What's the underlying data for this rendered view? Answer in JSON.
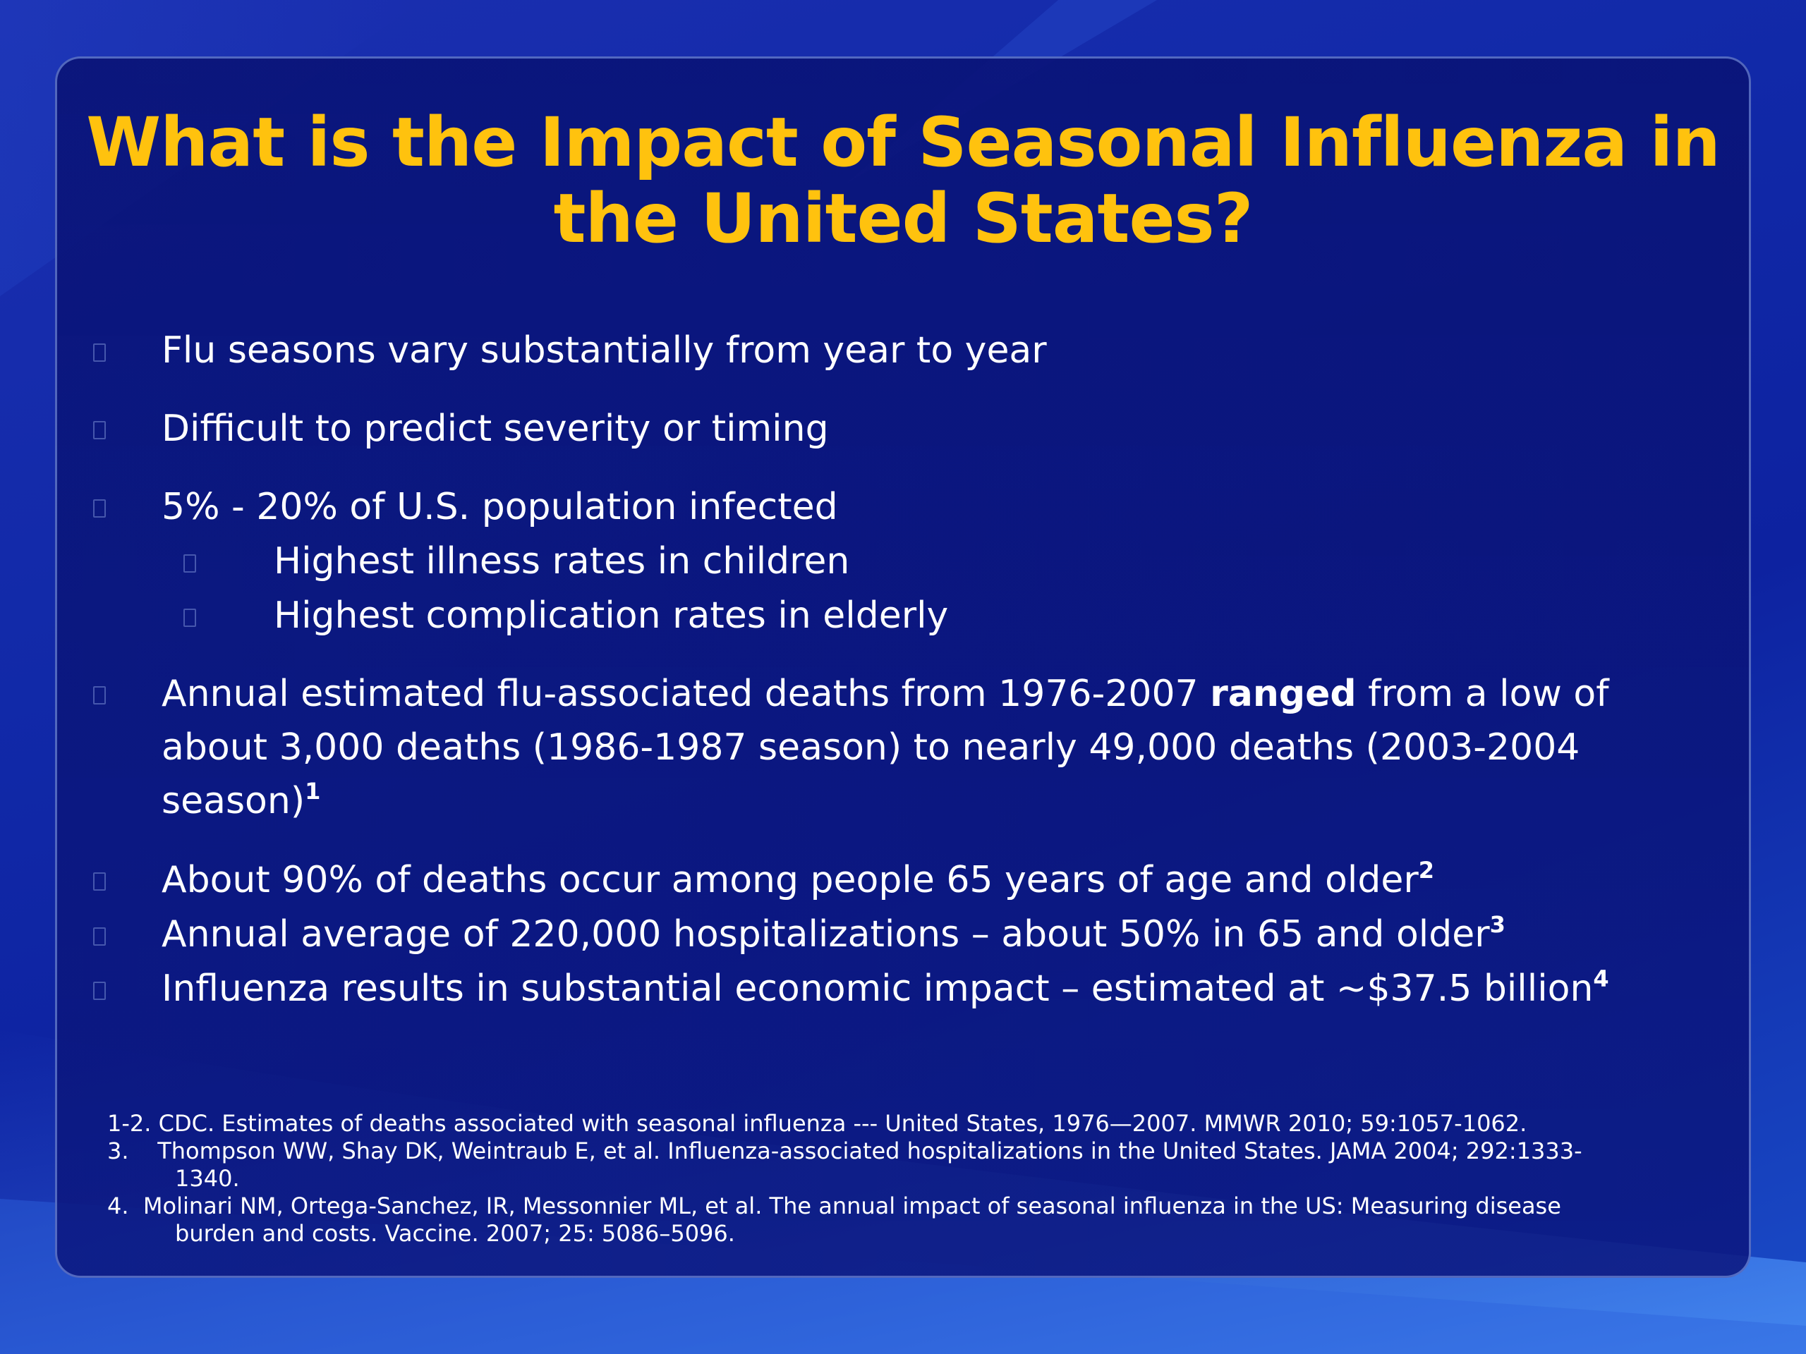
{
  "slide": {
    "title": "What is the Impact of Seasonal Influenza in the United States?",
    "bullets": [
      "Flu seasons vary substantially from year to year",
      "Difficult to predict severity or timing",
      "5% - 20% of U.S. population infected"
    ],
    "sub_bullets": [
      "Highest illness rates in children",
      "Highest complication rates in elderly"
    ],
    "deaths_bullet": {
      "before": "Annual estimated flu-associated deaths from 1976-2007 ",
      "bold": "ranged",
      "after": " from a low of about 3,000 deaths (1986-1987 season) to nearly 49,000 deaths (2003-2004 season)",
      "sup": "1"
    },
    "more_bullets": [
      {
        "text": "About 90% of deaths occur among people 65 years of age and older",
        "sup": "2"
      },
      {
        "text": "Annual average of 220,000 hospitalizations – about 50% in 65 and older",
        "sup": "3"
      },
      {
        "text": "Influenza results in substantial economic impact – estimated at ~$37.5 billion",
        "sup": "4"
      }
    ],
    "references": [
      {
        "num": "1-2.",
        "text": "CDC. Estimates of deaths associated with seasonal influenza --- United States, 1976—2007. MMWR 2010; 59:1057-1062.",
        "cont": ""
      },
      {
        "num": "3.",
        "text": "Thompson WW, Shay DK, Weintraub E, et al. Influenza-associated hospitalizations in the United States. JAMA 2004; 292:1333-",
        "cont": "1340."
      },
      {
        "num": "4.",
        "text": "Molinari  NM, Ortega-Sanchez, IR,  Messonnier ML, et al. The annual impact of seasonal influenza in the US: Measuring disease",
        "cont": "burden and costs. Vaccine. 2007; 25: 5086–5096."
      }
    ],
    "colors": {
      "title": "#ffc20e",
      "text": "#ffffff",
      "background": "#1129a8",
      "panel": "#0c1a85"
    },
    "bullet_icon": "square-bullet-icon"
  }
}
